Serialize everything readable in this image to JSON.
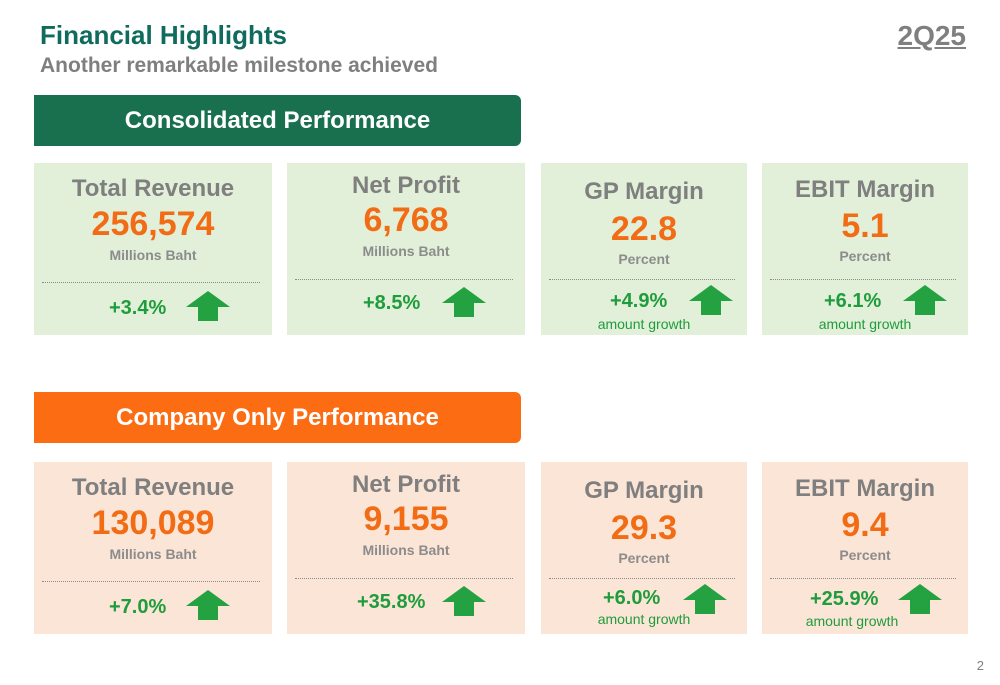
{
  "header": {
    "title": "Financial Highlights",
    "subtitle": "Another remarkable milestone achieved",
    "period": "2Q25"
  },
  "colors": {
    "teal_title": "#0f6b5c",
    "green_banner": "#19704f",
    "orange_banner": "#fb6c13",
    "green_card": "#e2f0d9",
    "peach_card": "#fbe5d6",
    "value_orange": "#f26b15",
    "growth_green": "#1f9c3c"
  },
  "consolidated": {
    "banner": "Consolidated Performance",
    "cards": [
      {
        "name": "Total Revenue",
        "value": "256,574",
        "unit": "Millions Baht",
        "growth": "+3.4%",
        "icon": "up-arrow-icon"
      },
      {
        "name": "Net Profit",
        "value": "6,768",
        "unit": "Millions Baht",
        "growth": "+8.5%",
        "icon": "up-arrow-icon"
      },
      {
        "name": "GP Margin",
        "value": "22.8",
        "unit": "Percent",
        "growth": "+4.9%",
        "note": "amount growth",
        "icon": "up-arrow-icon"
      },
      {
        "name": "EBIT Margin",
        "value": "5.1",
        "unit": "Percent",
        "growth": "+6.1%",
        "note": "amount growth",
        "icon": "up-arrow-icon"
      }
    ]
  },
  "company_only": {
    "banner": "Company Only Performance",
    "cards": [
      {
        "name": "Total Revenue",
        "value": "130,089",
        "unit": "Millions Baht",
        "growth": "+7.0%",
        "icon": "up-arrow-icon"
      },
      {
        "name": "Net Profit",
        "value": "9,155",
        "unit": "Millions Baht",
        "growth": "+35.8%",
        "icon": "up-arrow-icon"
      },
      {
        "name": "GP Margin",
        "value": "29.3",
        "unit": "Percent",
        "growth": "+6.0%",
        "note": "amount growth",
        "icon": "up-arrow-icon"
      },
      {
        "name": "EBIT Margin",
        "value": "9.4",
        "unit": "Percent",
        "growth": "+25.9%",
        "note": "amount growth",
        "icon": "up-arrow-icon"
      }
    ]
  },
  "footer": {
    "page_number": "2"
  }
}
